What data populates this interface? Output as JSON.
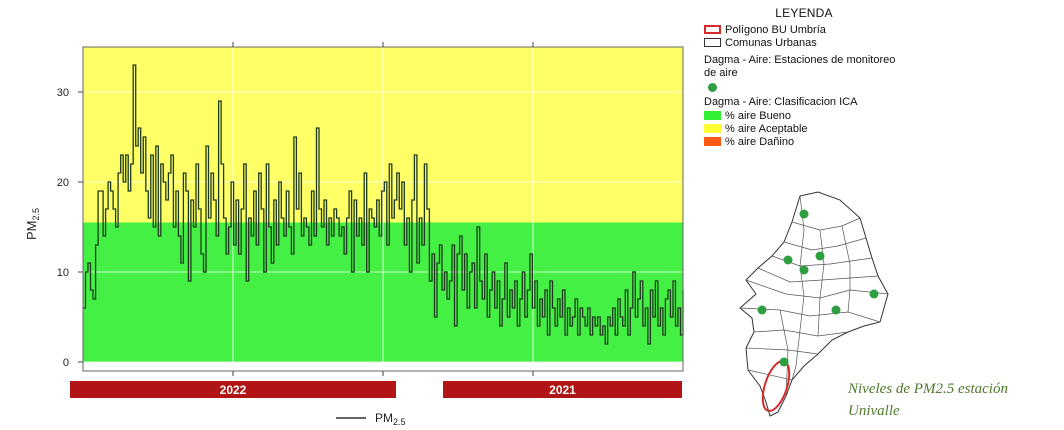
{
  "chart_data": {
    "type": "line",
    "ylabel": "PM2.5",
    "ylim": [
      -1,
      35
    ],
    "yticks": [
      0,
      10,
      20,
      30
    ],
    "background_bands": [
      {
        "from": 0,
        "to": 15.5,
        "color": "#44f044"
      },
      {
        "from": 15.5,
        "to": 35,
        "color": "#ffff66"
      }
    ],
    "period_labels": [
      "2022",
      "2021"
    ],
    "series": [
      {
        "name": "PM2.5",
        "color": "#1e3a1e",
        "x": [
          0,
          1,
          2,
          3,
          4,
          5,
          6,
          7,
          8,
          9,
          10,
          11,
          12,
          13,
          14,
          15,
          16,
          17,
          18,
          19,
          20,
          21,
          22,
          23,
          24,
          25,
          26,
          27,
          28,
          29,
          30,
          31,
          32,
          33,
          34,
          35,
          36,
          37,
          38,
          39,
          40,
          41,
          42,
          43,
          44,
          45,
          46,
          47,
          48,
          49,
          50,
          51,
          52,
          53,
          54,
          55,
          56,
          57,
          58,
          59,
          60,
          61,
          62,
          63,
          64,
          65,
          66,
          67,
          68,
          69,
          70,
          71,
          72,
          73,
          74,
          75,
          76,
          77,
          78,
          79,
          80,
          81,
          82,
          83,
          84,
          85,
          86,
          87,
          88,
          89,
          90,
          91,
          92,
          93,
          94,
          95,
          96,
          97,
          98,
          99,
          100,
          101,
          102,
          103,
          104,
          105,
          106,
          107,
          108,
          109,
          110,
          111,
          112,
          113,
          114,
          115,
          116,
          117,
          118,
          119,
          120,
          121,
          122,
          123,
          124,
          125,
          126,
          127,
          128,
          129,
          130,
          131,
          132,
          133,
          134,
          135,
          136,
          137,
          138,
          139,
          140,
          141,
          142,
          143,
          144,
          145,
          146,
          147,
          148,
          149,
          150,
          151,
          152,
          153,
          154,
          155,
          156,
          157,
          158,
          159,
          160,
          161,
          162,
          163,
          164,
          165,
          166,
          167,
          168,
          169,
          170,
          171,
          172,
          173,
          174,
          175,
          176,
          177,
          178,
          179,
          180,
          181,
          182,
          183,
          184,
          185,
          186,
          187,
          188,
          189,
          190,
          191,
          192,
          193,
          194,
          195,
          196,
          197,
          198,
          199,
          200,
          201,
          202,
          203,
          204,
          205,
          206,
          207,
          208,
          209,
          210,
          211,
          212,
          213,
          214,
          215,
          216,
          217,
          218,
          219,
          220,
          221,
          222,
          223,
          224,
          225,
          226,
          227,
          228,
          229,
          230,
          231,
          232,
          233,
          234,
          235,
          236,
          237,
          238,
          239
        ],
        "y": [
          6,
          10,
          11,
          8,
          7,
          13,
          19,
          19,
          14,
          17,
          20,
          19,
          17,
          15,
          21,
          23,
          20,
          23,
          19,
          22,
          33,
          24,
          26,
          21,
          25,
          19,
          16,
          23,
          15,
          24,
          14,
          22,
          20,
          18,
          21,
          23,
          15,
          19,
          14,
          11,
          21,
          19,
          9,
          18,
          15,
          22,
          17,
          12,
          10,
          24,
          16,
          21,
          18,
          14,
          29,
          22,
          16,
          12,
          15,
          20,
          13,
          18,
          12,
          17,
          22,
          9,
          16,
          14,
          19,
          13,
          21,
          17,
          10,
          22,
          15,
          11,
          18,
          13,
          20,
          16,
          14,
          19,
          15,
          12,
          25,
          17,
          21,
          14,
          16,
          15,
          13,
          19,
          14,
          26,
          17,
          15,
          18,
          13,
          16,
          14,
          17,
          16,
          14,
          15,
          12,
          16,
          19,
          10,
          18,
          14,
          16,
          13,
          21,
          10,
          17,
          16,
          15,
          18,
          14,
          19,
          20,
          13,
          22,
          16,
          18,
          21,
          17,
          20,
          13,
          16,
          10,
          18,
          23,
          11,
          16,
          13,
          22,
          17,
          9,
          12,
          5,
          11,
          13,
          8,
          10,
          7,
          9,
          13,
          4,
          12,
          14,
          8,
          12,
          6,
          10,
          11,
          6,
          15,
          9,
          7,
          12,
          5,
          8,
          10,
          6,
          9,
          4,
          7,
          11,
          5,
          8,
          6,
          9,
          4,
          7,
          10,
          5,
          8,
          12,
          6,
          9,
          4,
          7,
          5,
          8,
          3,
          9,
          6,
          4,
          7,
          5,
          8,
          3,
          6,
          4,
          5,
          7,
          3,
          6,
          5,
          4,
          6,
          3,
          5,
          4,
          5,
          3,
          4,
          2,
          5,
          4,
          6,
          3,
          7,
          5,
          4,
          8,
          3,
          6,
          10,
          5,
          7,
          9,
          4,
          6,
          2,
          8,
          5,
          9,
          4,
          6,
          3,
          7,
          8,
          5,
          9,
          4,
          6,
          3,
          8
        ]
      }
    ],
    "legend_series_label": "PM2.5"
  },
  "legend": {
    "title": "LEYENDA",
    "polygon": "Polígono BU Umbría",
    "comunas": "Comunas Urbanas",
    "stations_title": "Dagma - Aire: Estaciones de monitoreo de aire",
    "ica_title": "Dagma - Aire: Clasificacion ICA",
    "bueno": "% aire Bueno",
    "aceptable": "% aire Aceptable",
    "danino": "% aire Dañino"
  },
  "caption": {
    "line1": "Niveles de PM2.5 estación",
    "line2": "Univalle"
  },
  "colors": {
    "station_dot": "#2e9e40",
    "polygon_outline": "#d42a2a",
    "period_bar": "#b01414",
    "caption_text": "#4f7a2c"
  }
}
